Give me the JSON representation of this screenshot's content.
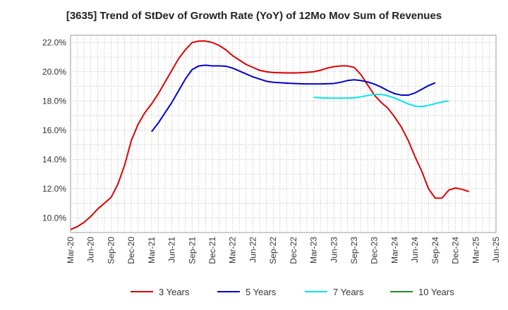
{
  "chart_data": {
    "type": "line",
    "title": "[3635]  Trend of StDev of Growth Rate (YoY) of 12Mo Mov Sum of Revenues",
    "xlabel": "",
    "ylabel": "",
    "ylim": [
      9.0,
      22.5
    ],
    "yticks": [
      10.0,
      12.0,
      14.0,
      16.0,
      18.0,
      20.0,
      22.0
    ],
    "ytick_labels": [
      "10.0%",
      "12.0%",
      "14.0%",
      "16.0%",
      "18.0%",
      "20.0%",
      "22.0%"
    ],
    "x_start": "Mar-20",
    "x_months": 63,
    "xtick_months": [
      0,
      3,
      6,
      9,
      12,
      15,
      18,
      21,
      24,
      27,
      30,
      33,
      36,
      39,
      42,
      45,
      48,
      51,
      54,
      57,
      60,
      63
    ],
    "xtick_labels": [
      "Mar-20",
      "Jun-20",
      "Sep-20",
      "Dec-20",
      "Mar-21",
      "Jun-21",
      "Sep-21",
      "Dec-21",
      "Mar-22",
      "Jun-22",
      "Sep-22",
      "Dec-22",
      "Mar-23",
      "Jun-23",
      "Sep-23",
      "Dec-23",
      "Mar-24",
      "Jun-24",
      "Sep-24",
      "Dec-24",
      "Mar-25",
      "Jun-25"
    ],
    "grid": true,
    "legend_position": "bottom",
    "series": [
      {
        "name": "3 Years",
        "color": "#dd0000",
        "start_month": 0,
        "values": [
          9.2,
          9.4,
          9.7,
          10.1,
          10.6,
          11.0,
          11.4,
          12.3,
          13.6,
          15.3,
          16.4,
          17.2,
          17.8,
          18.5,
          19.3,
          20.1,
          20.9,
          21.5,
          22.0,
          22.1,
          22.1,
          22.0,
          21.8,
          21.5,
          21.1,
          20.8,
          20.5,
          20.3,
          20.1,
          20.0,
          19.95,
          19.93,
          19.92,
          19.92,
          19.93,
          19.96,
          20.0,
          20.1,
          20.25,
          20.35,
          20.4,
          20.4,
          20.3,
          19.8,
          19.1,
          18.4,
          17.9,
          17.5,
          16.9,
          16.2,
          15.3,
          14.2,
          13.2,
          12.0,
          11.35,
          11.35,
          11.9,
          12.05,
          11.95,
          11.8
        ]
      },
      {
        "name": "5 Years",
        "color": "#0000cc",
        "start_month": 12,
        "values": [
          15.9,
          16.5,
          17.2,
          17.9,
          18.7,
          19.5,
          20.15,
          20.4,
          20.45,
          20.4,
          20.4,
          20.38,
          20.25,
          20.05,
          19.85,
          19.65,
          19.5,
          19.35,
          19.28,
          19.25,
          19.22,
          19.2,
          19.18,
          19.17,
          19.17,
          19.17,
          19.18,
          19.2,
          19.28,
          19.4,
          19.45,
          19.4,
          19.3,
          19.15,
          18.95,
          18.7,
          18.5,
          18.4,
          18.4,
          18.55,
          18.8,
          19.05,
          19.25
        ]
      },
      {
        "name": "7 Years",
        "color": "#00e5ee",
        "start_month": 36,
        "values": [
          18.25,
          18.22,
          18.2,
          18.2,
          18.2,
          18.2,
          18.22,
          18.28,
          18.38,
          18.45,
          18.45,
          18.35,
          18.2,
          18.0,
          17.8,
          17.65,
          17.62,
          17.7,
          17.82,
          17.93,
          18.0
        ]
      },
      {
        "name": "10 Years",
        "color": "#228b22",
        "start_month": 0,
        "values": []
      }
    ]
  }
}
